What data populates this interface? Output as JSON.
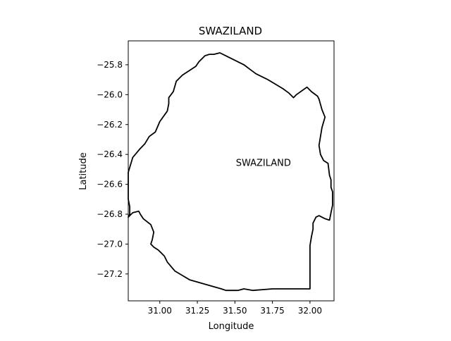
{
  "chart_data": {
    "type": "map",
    "title": "SWAZILAND",
    "xlabel": "Longitude",
    "ylabel": "Latitude",
    "xlim": [
      30.79,
      32.16
    ],
    "ylim": [
      -27.38,
      -25.64
    ],
    "xticks": [
      31.0,
      31.25,
      31.5,
      31.75,
      32.0
    ],
    "xtick_labels": [
      "31.00",
      "31.25",
      "31.50",
      "31.75",
      "32.00"
    ],
    "yticks": [
      -25.8,
      -26.0,
      -26.2,
      -26.4,
      -26.6,
      -26.8,
      -27.0,
      -27.2
    ],
    "ytick_labels": [
      "−25.8",
      "−26.0",
      "−26.2",
      "−26.4",
      "−26.6",
      "−26.8",
      "−27.0",
      "−27.2"
    ],
    "grid": false,
    "annotations": [
      {
        "text": "SWAZILAND",
        "x": 31.69,
        "y": -26.46
      }
    ],
    "border_color": "#000000",
    "boundary": [
      [
        30.79,
        -26.52
      ],
      [
        30.82,
        -26.42
      ],
      [
        30.87,
        -26.36
      ],
      [
        30.9,
        -26.33
      ],
      [
        30.93,
        -26.28
      ],
      [
        30.97,
        -26.25
      ],
      [
        31.0,
        -26.18
      ],
      [
        31.05,
        -26.11
      ],
      [
        31.06,
        -26.06
      ],
      [
        31.06,
        -26.02
      ],
      [
        31.09,
        -25.98
      ],
      [
        31.11,
        -25.91
      ],
      [
        31.15,
        -25.87
      ],
      [
        31.24,
        -25.81
      ],
      [
        31.26,
        -25.78
      ],
      [
        31.3,
        -25.74
      ],
      [
        31.33,
        -25.73
      ],
      [
        31.36,
        -25.73
      ],
      [
        31.4,
        -25.72
      ],
      [
        31.44,
        -25.74
      ],
      [
        31.5,
        -25.77
      ],
      [
        31.56,
        -25.8
      ],
      [
        31.6,
        -25.83
      ],
      [
        31.64,
        -25.86
      ],
      [
        31.72,
        -25.9
      ],
      [
        31.77,
        -25.93
      ],
      [
        31.82,
        -25.96
      ],
      [
        31.86,
        -25.99
      ],
      [
        31.89,
        -26.02
      ],
      [
        31.91,
        -26.0
      ],
      [
        31.98,
        -25.95
      ],
      [
        32.01,
        -25.98
      ],
      [
        32.05,
        -26.01
      ],
      [
        32.06,
        -26.03
      ],
      [
        32.08,
        -26.1
      ],
      [
        32.1,
        -26.15
      ],
      [
        32.08,
        -26.22
      ],
      [
        32.07,
        -26.28
      ],
      [
        32.06,
        -26.34
      ],
      [
        32.07,
        -26.4
      ],
      [
        32.09,
        -26.44
      ],
      [
        32.12,
        -26.46
      ],
      [
        32.13,
        -26.54
      ],
      [
        32.14,
        -26.57
      ],
      [
        32.14,
        -26.62
      ],
      [
        32.15,
        -26.65
      ],
      [
        32.15,
        -26.74
      ],
      [
        32.14,
        -26.79
      ],
      [
        32.13,
        -26.84
      ],
      [
        32.1,
        -26.83
      ],
      [
        32.06,
        -26.81
      ],
      [
        32.04,
        -26.82
      ],
      [
        32.02,
        -26.86
      ],
      [
        32.02,
        -26.89
      ],
      [
        32.02,
        -26.9
      ],
      [
        32.01,
        -26.95
      ],
      [
        32.0,
        -27.01
      ],
      [
        32.0,
        -27.08
      ],
      [
        32.0,
        -27.3
      ],
      [
        31.9,
        -27.3
      ],
      [
        31.75,
        -27.3
      ],
      [
        31.62,
        -27.31
      ],
      [
        31.56,
        -27.3
      ],
      [
        31.52,
        -27.31
      ],
      [
        31.44,
        -27.31
      ],
      [
        31.41,
        -27.3
      ],
      [
        31.2,
        -27.24
      ],
      [
        31.1,
        -27.18
      ],
      [
        31.05,
        -27.12
      ],
      [
        31.03,
        -27.08
      ],
      [
        30.99,
        -27.04
      ],
      [
        30.96,
        -27.02
      ],
      [
        30.94,
        -27.0
      ],
      [
        30.95,
        -26.97
      ],
      [
        30.96,
        -26.92
      ],
      [
        30.94,
        -26.87
      ],
      [
        30.89,
        -26.83
      ],
      [
        30.87,
        -26.8
      ],
      [
        30.86,
        -26.78
      ],
      [
        30.82,
        -26.79
      ],
      [
        30.8,
        -26.81
      ],
      [
        30.79,
        -26.82
      ],
      [
        30.8,
        -26.8
      ],
      [
        30.8,
        -26.75
      ],
      [
        30.79,
        -26.7
      ],
      [
        30.79,
        -26.6
      ],
      [
        30.79,
        -26.52
      ]
    ]
  }
}
